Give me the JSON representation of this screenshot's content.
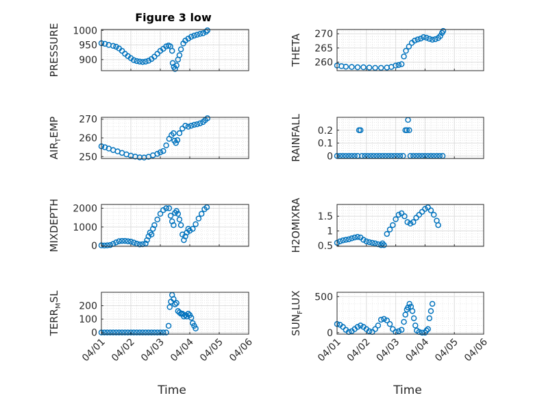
{
  "figure": {
    "title": "Figure 3 low"
  },
  "style": {
    "marker_color": "#0072BD",
    "axis_color": "#262626",
    "grid_color": "#dcdcdc"
  },
  "x_axis": {
    "label": "Time",
    "ticks": [
      "04/01",
      "04/02",
      "04/03",
      "04/04",
      "04/05",
      "04/06"
    ],
    "range": [
      0,
      5
    ]
  },
  "chart_data": [
    {
      "type": "scatter",
      "ylabel_main": "PRESSURE",
      "ylabel_sub": "",
      "ylim": [
        862,
        1003
      ],
      "yticks": [
        900,
        950,
        1000
      ],
      "ytick_labels": [
        "900",
        "950",
        "1000"
      ],
      "grid": true,
      "points": [
        [
          0.0,
          956
        ],
        [
          0.12,
          954
        ],
        [
          0.25,
          950
        ],
        [
          0.4,
          947
        ],
        [
          0.5,
          944
        ],
        [
          0.6,
          938
        ],
        [
          0.7,
          930
        ],
        [
          0.8,
          920
        ],
        [
          0.9,
          912
        ],
        [
          1.0,
          905
        ],
        [
          1.1,
          898
        ],
        [
          1.2,
          895
        ],
        [
          1.3,
          893
        ],
        [
          1.4,
          892
        ],
        [
          1.5,
          893
        ],
        [
          1.6,
          896
        ],
        [
          1.7,
          902
        ],
        [
          1.8,
          910
        ],
        [
          1.9,
          920
        ],
        [
          2.0,
          930
        ],
        [
          2.1,
          937
        ],
        [
          2.2,
          945
        ],
        [
          2.28,
          948
        ],
        [
          2.34,
          945
        ],
        [
          2.4,
          930
        ],
        [
          2.42,
          888
        ],
        [
          2.46,
          875
        ],
        [
          2.5,
          868
        ],
        [
          2.55,
          880
        ],
        [
          2.6,
          900
        ],
        [
          2.65,
          915
        ],
        [
          2.7,
          935
        ],
        [
          2.78,
          955
        ],
        [
          2.85,
          965
        ],
        [
          2.95,
          972
        ],
        [
          3.05,
          978
        ],
        [
          3.15,
          982
        ],
        [
          3.25,
          985
        ],
        [
          3.35,
          988
        ],
        [
          3.45,
          990
        ],
        [
          3.55,
          995
        ],
        [
          3.6,
          1000
        ]
      ]
    },
    {
      "type": "scatter",
      "ylabel_main": "THETA",
      "ylabel_sub": "",
      "ylim": [
        257,
        271.5
      ],
      "yticks": [
        260,
        265,
        270
      ],
      "ytick_labels": [
        "260",
        "265",
        "270"
      ],
      "grid": true,
      "points": [
        [
          0.0,
          258.8
        ],
        [
          0.15,
          258.6
        ],
        [
          0.3,
          258.4
        ],
        [
          0.5,
          258.3
        ],
        [
          0.7,
          258.2
        ],
        [
          0.9,
          258.2
        ],
        [
          1.1,
          258.1
        ],
        [
          1.3,
          258.0
        ],
        [
          1.5,
          258.0
        ],
        [
          1.7,
          258.1
        ],
        [
          1.85,
          258.3
        ],
        [
          2.0,
          258.8
        ],
        [
          2.1,
          259.0
        ],
        [
          2.2,
          259.3
        ],
        [
          2.28,
          262
        ],
        [
          2.35,
          264
        ],
        [
          2.45,
          265.5
        ],
        [
          2.55,
          266.8
        ],
        [
          2.65,
          267.6
        ],
        [
          2.75,
          268.0
        ],
        [
          2.85,
          268.3
        ],
        [
          2.95,
          268.8
        ],
        [
          3.05,
          268.6
        ],
        [
          3.15,
          268.2
        ],
        [
          3.25,
          267.9
        ],
        [
          3.35,
          268.1
        ],
        [
          3.45,
          268.5
        ],
        [
          3.52,
          269.2
        ],
        [
          3.58,
          270.3
        ],
        [
          3.62,
          271.0
        ]
      ]
    },
    {
      "type": "scatter",
      "ylabel_main": "AIR",
      "ylabel_sub": "T",
      "ylabel_tail": "EMP",
      "ylim": [
        249,
        271
      ],
      "yticks": [
        250,
        260,
        270
      ],
      "ytick_labels": [
        "250",
        "260",
        "270"
      ],
      "grid": true,
      "points": [
        [
          0.0,
          255.5
        ],
        [
          0.12,
          255.0
        ],
        [
          0.25,
          254.3
        ],
        [
          0.4,
          253.5
        ],
        [
          0.55,
          252.8
        ],
        [
          0.7,
          252.0
        ],
        [
          0.85,
          251.2
        ],
        [
          1.0,
          250.5
        ],
        [
          1.15,
          250.0
        ],
        [
          1.3,
          249.6
        ],
        [
          1.45,
          249.5
        ],
        [
          1.6,
          249.9
        ],
        [
          1.75,
          250.7
        ],
        [
          1.9,
          251.5
        ],
        [
          2.0,
          252.3
        ],
        [
          2.1,
          253.0
        ],
        [
          2.2,
          256.0
        ],
        [
          2.3,
          259.5
        ],
        [
          2.38,
          261.5
        ],
        [
          2.45,
          262.5
        ],
        [
          2.48,
          258.5
        ],
        [
          2.53,
          257.3
        ],
        [
          2.58,
          258.8
        ],
        [
          2.65,
          262.5
        ],
        [
          2.75,
          265.0
        ],
        [
          2.85,
          266.5
        ],
        [
          2.95,
          266.0
        ],
        [
          3.05,
          266.5
        ],
        [
          3.15,
          267.0
        ],
        [
          3.25,
          267.3
        ],
        [
          3.35,
          267.8
        ],
        [
          3.45,
          268.5
        ],
        [
          3.52,
          269.5
        ],
        [
          3.6,
          270.5
        ]
      ]
    },
    {
      "type": "scatter",
      "ylabel_main": "RAINFALL",
      "ylabel_sub": "",
      "ylim": [
        -0.02,
        0.3
      ],
      "yticks": [
        0,
        0.1,
        0.2
      ],
      "ytick_labels": [
        "0",
        "0.1",
        "0.2"
      ],
      "grid": true,
      "points": [
        [
          0.0,
          0
        ],
        [
          0.1,
          0
        ],
        [
          0.2,
          0
        ],
        [
          0.3,
          0
        ],
        [
          0.4,
          0
        ],
        [
          0.5,
          0
        ],
        [
          0.6,
          0
        ],
        [
          0.7,
          0
        ],
        [
          0.75,
          0.2
        ],
        [
          0.8,
          0.2
        ],
        [
          0.85,
          0
        ],
        [
          0.95,
          0
        ],
        [
          1.05,
          0
        ],
        [
          1.15,
          0
        ],
        [
          1.25,
          0
        ],
        [
          1.35,
          0
        ],
        [
          1.45,
          0
        ],
        [
          1.55,
          0
        ],
        [
          1.65,
          0
        ],
        [
          1.75,
          0
        ],
        [
          1.85,
          0
        ],
        [
          1.95,
          0
        ],
        [
          2.05,
          0
        ],
        [
          2.15,
          0
        ],
        [
          2.25,
          0
        ],
        [
          2.33,
          0.2
        ],
        [
          2.38,
          0.2
        ],
        [
          2.42,
          0.28
        ],
        [
          2.46,
          0.2
        ],
        [
          2.5,
          0
        ],
        [
          2.6,
          0
        ],
        [
          2.7,
          0
        ],
        [
          2.8,
          0
        ],
        [
          2.9,
          0
        ],
        [
          3.0,
          0
        ],
        [
          3.1,
          0
        ],
        [
          3.2,
          0
        ],
        [
          3.3,
          0
        ],
        [
          3.4,
          0
        ],
        [
          3.5,
          0
        ],
        [
          3.6,
          0
        ]
      ]
    },
    {
      "type": "scatter",
      "ylabel_main": "MIXDEPTH",
      "ylabel_sub": "",
      "ylim": [
        -30,
        2200
      ],
      "yticks": [
        0,
        1000,
        2000
      ],
      "ytick_labels": [
        "0",
        "1000",
        "2000"
      ],
      "grid": true,
      "points": [
        [
          0.0,
          20
        ],
        [
          0.1,
          10
        ],
        [
          0.2,
          20
        ],
        [
          0.3,
          40
        ],
        [
          0.4,
          100
        ],
        [
          0.5,
          180
        ],
        [
          0.6,
          240
        ],
        [
          0.7,
          260
        ],
        [
          0.8,
          260
        ],
        [
          0.9,
          240
        ],
        [
          1.0,
          220
        ],
        [
          1.1,
          170
        ],
        [
          1.2,
          110
        ],
        [
          1.3,
          70
        ],
        [
          1.4,
          80
        ],
        [
          1.5,
          120
        ],
        [
          1.55,
          300
        ],
        [
          1.6,
          500
        ],
        [
          1.65,
          700
        ],
        [
          1.7,
          600
        ],
        [
          1.75,
          900
        ],
        [
          1.8,
          1100
        ],
        [
          1.9,
          1400
        ],
        [
          2.0,
          1700
        ],
        [
          2.1,
          1900
        ],
        [
          2.2,
          2000
        ],
        [
          2.3,
          2000
        ],
        [
          2.35,
          1600
        ],
        [
          2.4,
          1300
        ],
        [
          2.45,
          1100
        ],
        [
          2.5,
          1750
        ],
        [
          2.55,
          1850
        ],
        [
          2.6,
          1700
        ],
        [
          2.65,
          1400
        ],
        [
          2.7,
          1100
        ],
        [
          2.75,
          600
        ],
        [
          2.8,
          300
        ],
        [
          2.85,
          500
        ],
        [
          2.9,
          700
        ],
        [
          2.95,
          900
        ],
        [
          3.0,
          800
        ],
        [
          3.1,
          900
        ],
        [
          3.2,
          1150
        ],
        [
          3.3,
          1450
        ],
        [
          3.4,
          1700
        ],
        [
          3.5,
          1950
        ],
        [
          3.58,
          2050
        ]
      ]
    },
    {
      "type": "scatter",
      "ylabel_main": "H2OMIXRA",
      "ylabel_sub": "",
      "ylim": [
        0.48,
        1.9
      ],
      "yticks": [
        0.5,
        1,
        1.5
      ],
      "ytick_labels": [
        "0.5",
        "1",
        "1.5"
      ],
      "grid": true,
      "points": [
        [
          0.0,
          0.6
        ],
        [
          0.1,
          0.65
        ],
        [
          0.2,
          0.68
        ],
        [
          0.3,
          0.7
        ],
        [
          0.4,
          0.72
        ],
        [
          0.5,
          0.75
        ],
        [
          0.6,
          0.78
        ],
        [
          0.7,
          0.8
        ],
        [
          0.8,
          0.78
        ],
        [
          0.9,
          0.7
        ],
        [
          1.0,
          0.65
        ],
        [
          1.1,
          0.62
        ],
        [
          1.2,
          0.6
        ],
        [
          1.3,
          0.58
        ],
        [
          1.4,
          0.55
        ],
        [
          1.5,
          0.52
        ],
        [
          1.55,
          0.58
        ],
        [
          1.6,
          0.52
        ],
        [
          1.7,
          0.9
        ],
        [
          1.8,
          1.05
        ],
        [
          1.9,
          1.2
        ],
        [
          2.0,
          1.4
        ],
        [
          2.1,
          1.55
        ],
        [
          2.2,
          1.6
        ],
        [
          2.3,
          1.5
        ],
        [
          2.4,
          1.3
        ],
        [
          2.5,
          1.25
        ],
        [
          2.6,
          1.3
        ],
        [
          2.7,
          1.45
        ],
        [
          2.8,
          1.55
        ],
        [
          2.9,
          1.65
        ],
        [
          3.0,
          1.75
        ],
        [
          3.1,
          1.8
        ],
        [
          3.2,
          1.7
        ],
        [
          3.3,
          1.55
        ],
        [
          3.4,
          1.35
        ],
        [
          3.45,
          1.2
        ]
      ]
    },
    {
      "type": "scatter",
      "ylabel_main": "TERR",
      "ylabel_sub": "M",
      "ylabel_tail": "SL",
      "ylim": [
        -12,
        300
      ],
      "yticks": [
        0,
        100,
        200
      ],
      "ytick_labels": [
        "0",
        "100",
        "200"
      ],
      "grid": true,
      "points": [
        [
          0.0,
          0
        ],
        [
          0.1,
          0
        ],
        [
          0.2,
          0
        ],
        [
          0.3,
          0
        ],
        [
          0.4,
          0
        ],
        [
          0.5,
          0
        ],
        [
          0.6,
          0
        ],
        [
          0.7,
          0
        ],
        [
          0.8,
          0
        ],
        [
          0.9,
          0
        ],
        [
          1.0,
          0
        ],
        [
          1.1,
          0
        ],
        [
          1.2,
          0
        ],
        [
          1.3,
          0
        ],
        [
          1.4,
          0
        ],
        [
          1.5,
          0
        ],
        [
          1.6,
          0
        ],
        [
          1.7,
          0
        ],
        [
          1.8,
          0
        ],
        [
          1.9,
          0
        ],
        [
          2.0,
          0
        ],
        [
          2.1,
          0
        ],
        [
          2.2,
          0
        ],
        [
          2.28,
          50
        ],
        [
          2.32,
          190
        ],
        [
          2.36,
          230
        ],
        [
          2.4,
          280
        ],
        [
          2.45,
          250
        ],
        [
          2.5,
          210
        ],
        [
          2.55,
          220
        ],
        [
          2.6,
          160
        ],
        [
          2.65,
          150
        ],
        [
          2.7,
          140
        ],
        [
          2.75,
          140
        ],
        [
          2.8,
          120
        ],
        [
          2.85,
          130
        ],
        [
          2.9,
          120
        ],
        [
          2.95,
          140
        ],
        [
          3.0,
          130
        ],
        [
          3.05,
          110
        ],
        [
          3.1,
          70
        ],
        [
          3.15,
          50
        ],
        [
          3.2,
          30
        ]
      ]
    },
    {
      "type": "scatter",
      "ylabel_main": "SUN",
      "ylabel_sub": "F",
      "ylabel_tail": "LUX",
      "ylim": [
        -20,
        560
      ],
      "yticks": [
        0,
        500
      ],
      "ytick_labels": [
        "0",
        "500"
      ],
      "grid": true,
      "points": [
        [
          0.0,
          120
        ],
        [
          0.1,
          110
        ],
        [
          0.2,
          80
        ],
        [
          0.3,
          40
        ],
        [
          0.4,
          10
        ],
        [
          0.5,
          20
        ],
        [
          0.6,
          50
        ],
        [
          0.7,
          80
        ],
        [
          0.8,
          100
        ],
        [
          0.9,
          80
        ],
        [
          1.0,
          50
        ],
        [
          1.1,
          20
        ],
        [
          1.2,
          10
        ],
        [
          1.3,
          50
        ],
        [
          1.4,
          100
        ],
        [
          1.5,
          180
        ],
        [
          1.6,
          190
        ],
        [
          1.7,
          170
        ],
        [
          1.8,
          120
        ],
        [
          1.9,
          50
        ],
        [
          2.0,
          10
        ],
        [
          2.1,
          20
        ],
        [
          2.2,
          40
        ],
        [
          2.28,
          150
        ],
        [
          2.33,
          250
        ],
        [
          2.38,
          320
        ],
        [
          2.42,
          350
        ],
        [
          2.47,
          400
        ],
        [
          2.52,
          360
        ],
        [
          2.57,
          300
        ],
        [
          2.62,
          200
        ],
        [
          2.67,
          100
        ],
        [
          2.72,
          30
        ],
        [
          2.8,
          10
        ],
        [
          2.9,
          0
        ],
        [
          3.0,
          0
        ],
        [
          3.05,
          30
        ],
        [
          3.1,
          50
        ],
        [
          3.15,
          200
        ],
        [
          3.2,
          300
        ],
        [
          3.25,
          400
        ]
      ]
    }
  ]
}
